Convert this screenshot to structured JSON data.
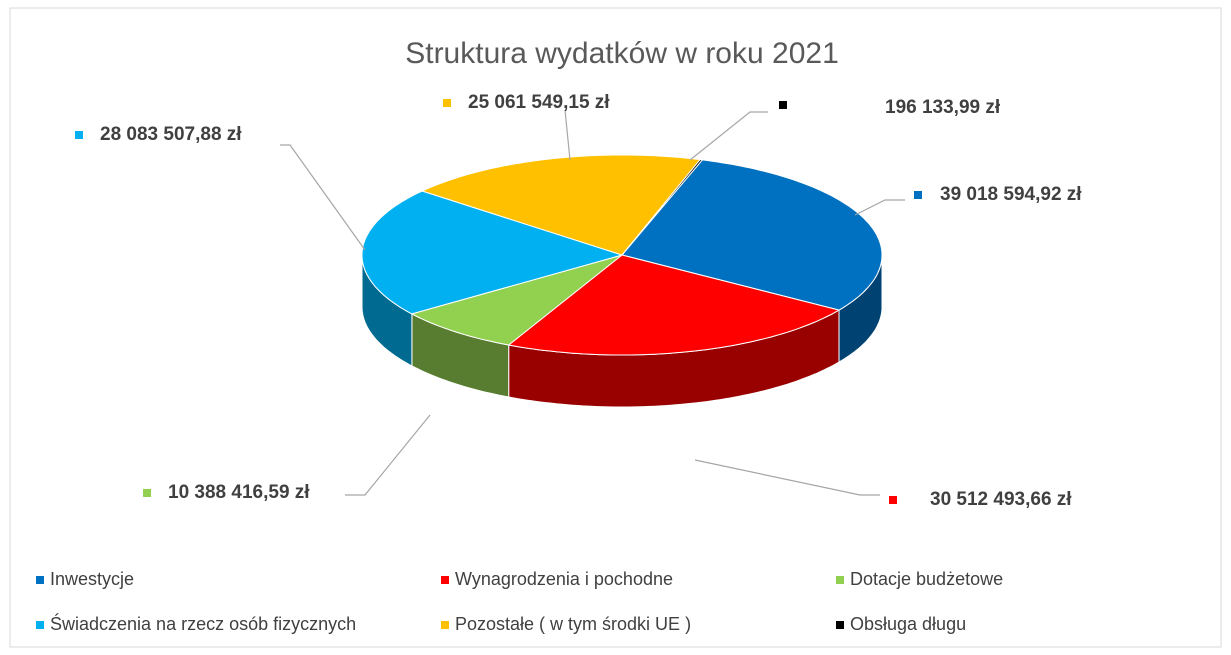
{
  "chart_data": {
    "type": "pie3d",
    "title": "Struktura wydatków w roku 2021",
    "series": [
      {
        "name": "Inwestycje",
        "color": "#0070c0",
        "values": [
          39018594.92
        ],
        "value_labels": [
          "39 018 594,92 zł"
        ]
      },
      {
        "name": "Wynagrodzenia i pochodne",
        "color": "#ff0000",
        "values": [
          30512493.66
        ],
        "value_labels": [
          "30 512 493,66 zł"
        ]
      },
      {
        "name": "Dotacje budżetowe",
        "color": "#92d050",
        "values": [
          10388416.59
        ],
        "value_labels": [
          "10 388 416,59 zł"
        ]
      },
      {
        "name": "Świadczenia na rzecz osób fizycznych",
        "color": "#00b0f0",
        "values": [
          28083507.88
        ],
        "value_labels": [
          "28 083 507,88 zł"
        ]
      },
      {
        "name": "Pozostałe ( w tym środki UE )",
        "color": "#ffc000",
        "values": [
          25061549.15
        ],
        "value_labels": [
          "25 061 549,15 zł"
        ]
      },
      {
        "name": "Obsługa długu",
        "color": "#000000",
        "values": [
          196133.99
        ],
        "value_labels": [
          "196 133,99 zł"
        ]
      }
    ],
    "legend": "bottom"
  }
}
